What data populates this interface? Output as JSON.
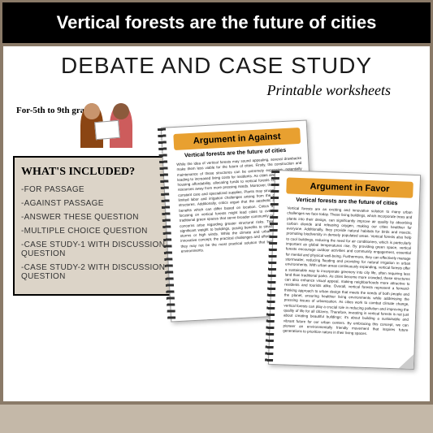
{
  "header": {
    "title": "Vertical forests are the future of cities"
  },
  "main": {
    "debate_title": "DEBATE AND CASE STUDY",
    "subtitle": "Printable worksheets",
    "grade": "For-5th to 9th grade"
  },
  "included": {
    "title": "WHAT'S INCLUDED?",
    "items": [
      "-FOR PASSAGE",
      "-AGAINST PASSAGE",
      "-ANSWER THESE QUESTION",
      "-MULTIPLE CHOICE QUESTION",
      "-CASE STUDY-1 WITH DISCUSSION QUESTION",
      "-CASE STUDY-2 WITH DISCUSSION QUESTION"
    ]
  },
  "worksheets": {
    "ws1": {
      "header": "Argument in Against",
      "subtitle": "Vertical forests are the future of cities",
      "body": "While the idea of vertical forests may sound appealing, several drawbacks make them less viable for the future of cities. Firstly, the construction and maintenance of these structures can be extremely expensive, potentially leading to increased living costs for residents. As cities already grapple with housing affordability, allocating funds to vertical forests could divert crucial resources away from more pressing needs. Moreover, the greenery requires constant care and specialized supplies. Plants may struggle to thrive due to limited labor and irrigation challenges arising from the decline in building structures. Additionally, critics argue that the aesthetic and environmental benefits which can differ based on location. Critics also point out that focusing on vertical forests might lead cities to overlook simpler, more traditional green spaces that serve broader community needs. Finally, safety concerns arise regarding greater structural risks. Trees and plants add significant weight to buildings, posing benefits to structural integrity during storms or high winds. While the climate and urban forests present an innovative concept, the practical challenges and effective risks suggest that they may not be the most practical solution that better serve our urban environments."
    },
    "ws2": {
      "header": "Argument in Favor",
      "subtitle": "Vertical forests are the future of cities",
      "body": "Vertical forests are an exciting and innovative solution to many urban challenges we face today. These living buildings, which incorporate trees and plants into their design, can significantly improve air quality by absorbing carbon dioxide and releasing oxygen, making our cities healthier for everyone. Additionally, they provide natural habitats for birds and insects, promoting biodiversity in densely populated areas. Vertical forests also help to cool buildings, reducing the need for air conditioners, which is particularly important as global temperatures rise. By providing green space, vertical forests encourage outdoor activities and community engagement, essential for mental and physical well-being. Furthermore, they can effectively manage stormwater, reducing flooding and providing for natural irrigation in urban environments. With urban areas continuously expanding, vertical forests offer a sustainable way to incorporate greenery into city life, often requiring less land than traditional parks. As cities become more crowded, these structures can also enhance visual appeal, making neighborhoods more attractive to residents and tourists alike. Overall, vertical forests represent a forward-thinking approach to urban design that meets the needs of both people and the planet, ensuring healthier living environments while addressing the pressing issues of urbanization. As cities work to combat climate change, vertical forests can play a crucial role in reducing pollution and improving the quality of life for all citizens. Therefore, investing in vertical forests is not just about creating beautiful buildings; it's about building a sustainable and vibrant future for our urban centers. By embracing this concept, we can pioneer an environmentally friendly movement that inspires future generations to prioritize nature in their living spaces."
    }
  }
}
